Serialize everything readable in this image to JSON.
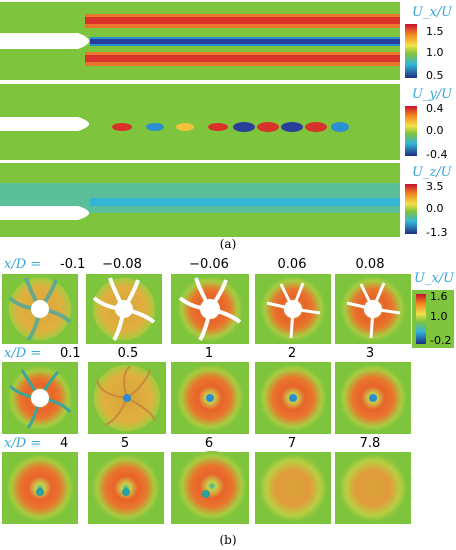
{
  "part_a": {
    "label": "(a)",
    "panels": [
      {
        "component": "Ux/U",
        "colorbar": {
          "title": "U_x/U",
          "ticks": [
            "1.5",
            "1.0",
            "0.5"
          ]
        }
      },
      {
        "component": "Uy/U",
        "colorbar": {
          "title": "U_y/U",
          "ticks": [
            "0.4",
            "0.0",
            "-0.4"
          ]
        }
      },
      {
        "component": "Uz/U",
        "colorbar": {
          "title": "U_z/U",
          "ticks": [
            "3.5",
            "0.0",
            "-1.3"
          ]
        }
      }
    ]
  },
  "part_b": {
    "label": "(b)",
    "x_prefix": "x/D =",
    "colorbar": {
      "title": "U_x/U",
      "ticks": [
        "1.6",
        "1.0",
        "-0.2"
      ]
    },
    "rows": [
      [
        "-0.1",
        "−0.08",
        "−0.06",
        "0.06",
        "0.08"
      ],
      [
        "0.1",
        "0.5",
        "1",
        "2",
        "3"
      ],
      [
        "4",
        "5",
        "6",
        "7",
        "7.8"
      ]
    ]
  },
  "colors": {
    "freestream": "#7ec43c",
    "wake_high": "#d8322a",
    "wake_low": "#2a3f9a",
    "hub": "#ffffff"
  }
}
